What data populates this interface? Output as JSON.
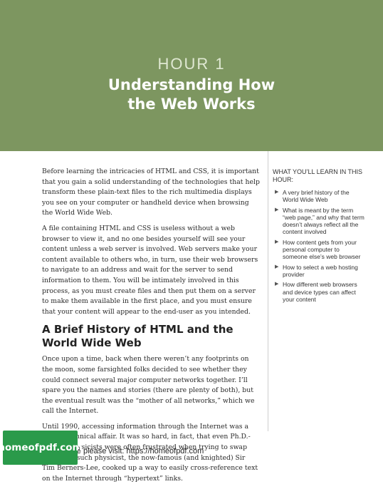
{
  "header": {
    "hour_label": "HOUR 1",
    "title_line1": "Understanding How",
    "title_line2": "the Web Works"
  },
  "main": {
    "intro_paragraphs": [
      "Before learning the intricacies of HTML and CSS, it is important that you gain a solid understanding of the technologies that help transform these plain-text files to the rich multimedia displays you see on your computer or handheld device when browsing the World Wide Web.",
      "A file containing HTML and CSS is useless without a web browser to view it, and no one besides yourself will see your content unless a web server is involved. Web servers make your content available to others who, in turn, use their web browsers to navigate to an address and wait for the server to send information to them. You will be intimately involved in this process, as you must create files and then put them on a server to make them available in the first place, and you must ensure that your content will appear to the end-user as you intended."
    ],
    "section_heading": "A Brief History of HTML and the World Wide Web",
    "section_paragraphs": [
      "Once upon a time, back when there weren’t any footprints on the moon, some farsighted folks decided to see whether they could connect several major computer networks together. I’ll spare you the names and stories (there are plenty of both), but the eventual result was the “mother of all networks,” which we call the Internet.",
      "Until 1990, accessing information through the Internet was a rather technical affair. It was so hard, in fact, that even Ph.D.-holding physicists were often frustrated when trying to swap data. One such physicist, the now-famous (and knighted) Sir Tim Berners-Lee, cooked up a way to easily cross-reference text on the Internet through “hypertext” links."
    ]
  },
  "sidebar": {
    "heading": "WHAT YOU’LL LEARN IN THIS HOUR:",
    "bullet_icon": "triangle-right-icon",
    "items": [
      "A very brief history of the World Wide Web",
      "What is meant by the term “web page,” and why that term doesn’t always reflect all the content involved",
      "How content gets from your personal computer to someone else’s web browser",
      "How to select a web hosting provider",
      "How different web browsers and device types can affect your content"
    ]
  },
  "footer": {
    "text": "ore please visit: https://homeofpdf.com",
    "logo_text": "homeofpdf.com"
  },
  "colors": {
    "banner": "#7d9660",
    "logo": "#2a9a4a"
  }
}
